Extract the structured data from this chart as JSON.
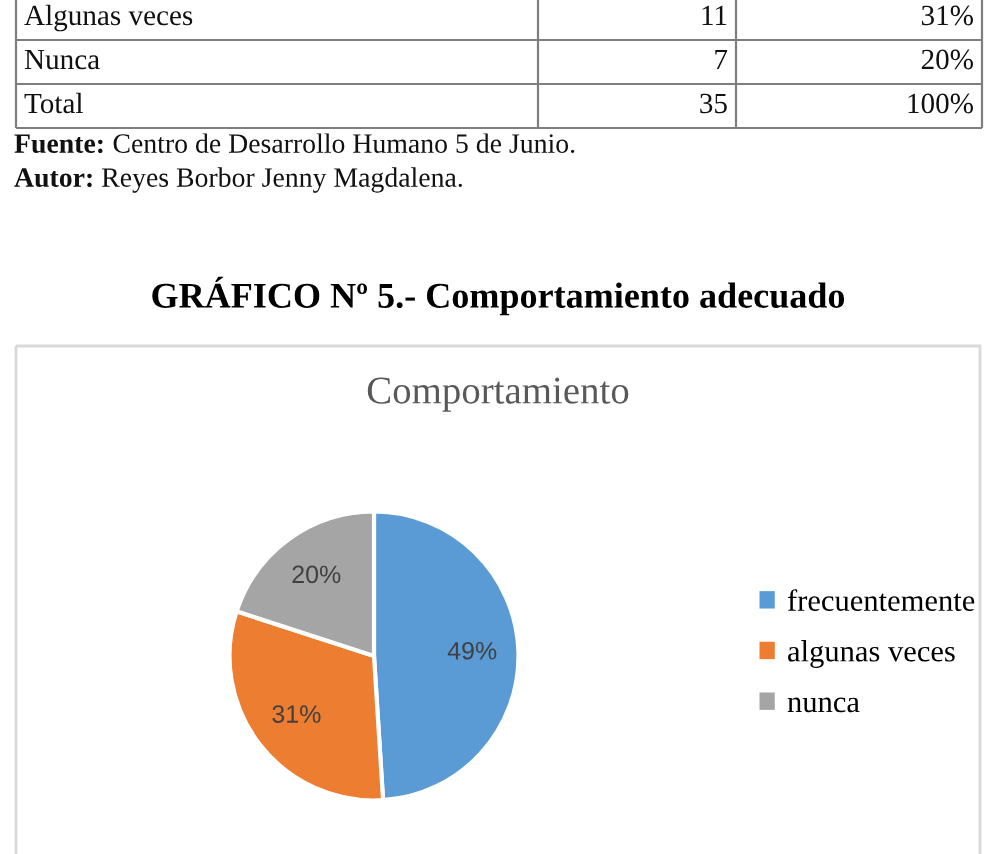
{
  "chart_data": [
    {
      "type": "other",
      "categories": [
        "Algunas veces",
        "Nunca",
        "Total"
      ],
      "data_labels": true,
      "series": [
        {
          "values": [
            11,
            7,
            35
          ]
        },
        {
          "values": [
            31,
            20,
            100
          ],
          "value_labels": [
            "31%",
            "20%",
            "100%"
          ]
        }
      ],
      "annotations": [
        "Fuente: Centro de Desarrollo Humano 5 de Junio.",
        "Autor: Reyes Borbor Jenny Magdalena."
      ]
    },
    {
      "type": "pie",
      "title": "GRÁFICO Nº 5.- Comportamiento adecuado",
      "subtitle": "Comportamiento",
      "categories": [
        "frecuentemente",
        "algunas veces",
        "nunca"
      ],
      "values": [
        49,
        31,
        20
      ],
      "colors": [
        "#5b9bd5",
        "#ed7d31",
        "#a5a5a5"
      ],
      "value_labels": [
        "49%",
        "31%",
        "20%"
      ],
      "legend": "right"
    }
  ]
}
